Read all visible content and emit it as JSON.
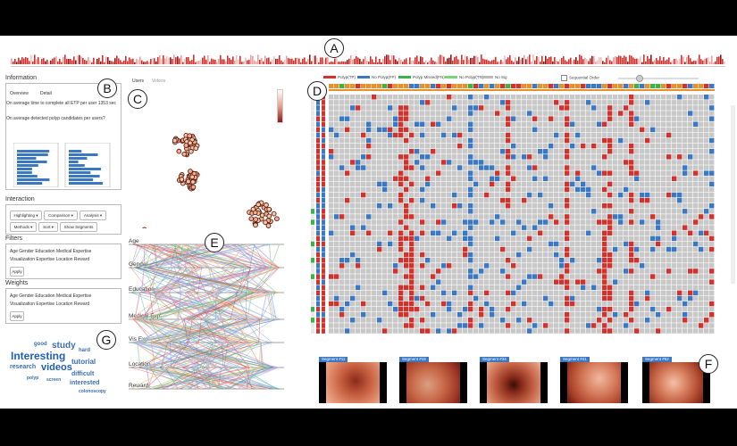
{
  "callouts": {
    "a": "A",
    "b": "B",
    "c": "C",
    "d": "D",
    "e": "E",
    "f": "F",
    "g": "G"
  },
  "colors": {
    "red": "#d0332d",
    "blue": "#3a78c3",
    "green": "#3cb34a",
    "orange": "#e8902c",
    "grey": "#c8c8c8"
  },
  "information": {
    "title": "Information",
    "tabs": [
      "Overview",
      "Detail"
    ],
    "question1": "On average time to complete all ETP per user 1353 sec",
    "question2": "On average detected polyp candidates per users?"
  },
  "interaction": {
    "title": "Interaction",
    "buttons_row1": [
      "Highlighting ▾",
      "Comparison ▾",
      "Analysis ▾"
    ],
    "buttons_row2": [
      "Methods ▾",
      "Sort ▾",
      "Show Segments"
    ]
  },
  "filters": {
    "title": "Filters",
    "line1": "Age  Gender  Education  Medical Expertise",
    "line2": "Visualization Expertise  Location  Reward",
    "apply": "Apply"
  },
  "weights": {
    "title": "Weights",
    "line1": "Age  Gender  Education  Medical Expertise",
    "line2": "Visualization Expertise  Location  Reward",
    "apply": "Apply"
  },
  "wordcloud": [
    "good",
    "study",
    "hard",
    "Interesting",
    "research",
    "videos",
    "tutorial",
    "polyp",
    "screen",
    "difficult",
    "interested",
    "colonoscopy"
  ],
  "scatter_tabs": [
    "Users",
    "Videos"
  ],
  "pcp_axes": [
    "Age",
    "Gender",
    "Education",
    "Medical Exp",
    "Vis Exp",
    "Location",
    "Reward"
  ],
  "matrix_legend": [
    "Polyp(TP)",
    "No Polyp(FP)",
    "Polyp Missed(FN)",
    "No Polyp(TN)",
    "No Sig"
  ],
  "matrix_toggle": "Sequential Order",
  "segments": [
    "Segment #11",
    "Segment #19",
    "Segment #34",
    "Segment #41",
    "Segment #52"
  ]
}
